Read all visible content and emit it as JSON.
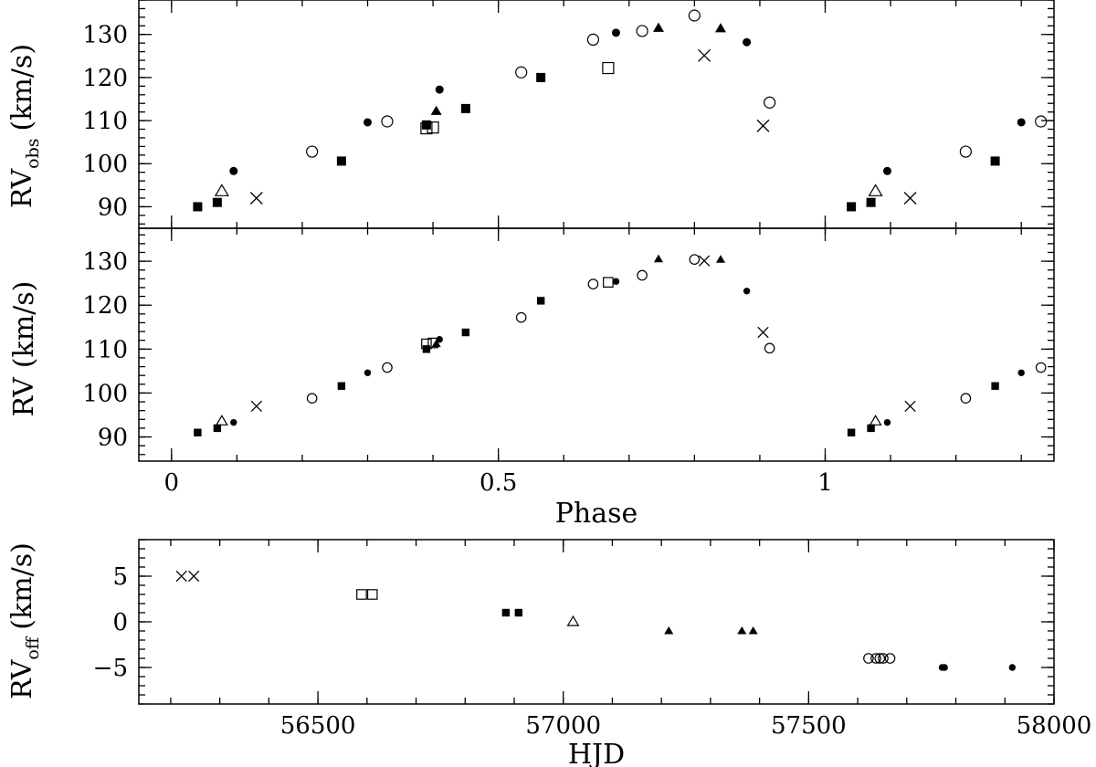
{
  "chart_data": [
    {
      "type": "scatter",
      "id": "rv-obs-panel",
      "ylabel_main": "RV",
      "ylabel_sub": "obs",
      "ylabel_unit": "(km/s)",
      "xlim": [
        -0.05,
        1.35
      ],
      "ylim": [
        85,
        138
      ],
      "yticks": [
        90,
        100,
        110,
        120,
        130
      ],
      "xticks": [
        0,
        0.5,
        1
      ],
      "show_xtick_labels": false,
      "series": [
        {
          "marker": "filled-square",
          "points": [
            [
              0.04,
              90
            ],
            [
              0.07,
              91
            ],
            [
              0.26,
              100.6
            ],
            [
              0.39,
              109
            ],
            [
              0.45,
              112.8
            ],
            [
              0.565,
              120
            ],
            [
              1.04,
              90
            ],
            [
              1.07,
              91
            ],
            [
              1.26,
              100.6
            ]
          ]
        },
        {
          "marker": "filled-circle",
          "points": [
            [
              0.095,
              98.3
            ],
            [
              0.3,
              109.6
            ],
            [
              0.41,
              117.2
            ],
            [
              0.68,
              130.4
            ],
            [
              0.88,
              128.2
            ],
            [
              1.095,
              98.3
            ],
            [
              1.3,
              109.6
            ]
          ]
        },
        {
          "marker": "filled-triangle",
          "points": [
            [
              0.405,
              112.2
            ],
            [
              0.745,
              131.5
            ],
            [
              0.84,
              131.4
            ]
          ]
        },
        {
          "marker": "open-circle",
          "points": [
            [
              0.215,
              102.8
            ],
            [
              0.33,
              109.8
            ],
            [
              0.535,
              121.2
            ],
            [
              0.645,
              128.8
            ],
            [
              0.72,
              130.8
            ],
            [
              0.8,
              134.4
            ],
            [
              0.915,
              114.2
            ],
            [
              1.215,
              102.8
            ],
            [
              1.33,
              109.8
            ]
          ]
        },
        {
          "marker": "open-square",
          "points": [
            [
              0.39,
              108.2
            ],
            [
              0.4,
              108.4
            ],
            [
              0.668,
              122.2
            ]
          ]
        },
        {
          "marker": "open-triangle",
          "points": [
            [
              0.077,
              93.6
            ],
            [
              1.077,
              93.6
            ]
          ]
        },
        {
          "marker": "cross",
          "points": [
            [
              0.13,
              92
            ],
            [
              0.815,
              125.1
            ],
            [
              0.905,
              108.8
            ],
            [
              1.13,
              92
            ]
          ]
        }
      ]
    },
    {
      "type": "scatter",
      "id": "rv-panel",
      "ylabel_main": "RV",
      "ylabel_unit": "(km/s)",
      "xlabel": "Phase",
      "xlim": [
        -0.05,
        1.35
      ],
      "ylim": [
        84.5,
        137.5
      ],
      "yticks": [
        90,
        100,
        110,
        120,
        130
      ],
      "xticks": [
        0,
        0.5,
        1
      ],
      "xtick_labels": [
        "0",
        "0.5",
        "1"
      ],
      "series": [
        {
          "marker": "filled-square",
          "points": [
            [
              0.04,
              91
            ],
            [
              0.07,
              92
            ],
            [
              0.26,
              101.6
            ],
            [
              0.39,
              110
            ],
            [
              0.45,
              113.8
            ],
            [
              0.565,
              121
            ],
            [
              1.04,
              91
            ],
            [
              1.07,
              92
            ],
            [
              1.26,
              101.6
            ]
          ]
        },
        {
          "marker": "filled-circle",
          "points": [
            [
              0.095,
              93.3
            ],
            [
              0.3,
              104.6
            ],
            [
              0.41,
              112.2
            ],
            [
              0.68,
              125.4
            ],
            [
              0.88,
              123.2
            ],
            [
              1.095,
              93.3
            ],
            [
              1.3,
              104.6
            ]
          ]
        },
        {
          "marker": "filled-triangle",
          "points": [
            [
              0.405,
              111.2
            ],
            [
              0.745,
              130.5
            ],
            [
              0.84,
              130.4
            ]
          ]
        },
        {
          "marker": "open-circle",
          "points": [
            [
              0.215,
              98.8
            ],
            [
              0.33,
              105.8
            ],
            [
              0.535,
              117.2
            ],
            [
              0.645,
              124.8
            ],
            [
              0.72,
              126.8
            ],
            [
              0.8,
              130.4
            ],
            [
              0.915,
              110.2
            ],
            [
              1.215,
              98.8
            ],
            [
              1.33,
              105.8
            ]
          ]
        },
        {
          "marker": "open-square",
          "points": [
            [
              0.39,
              111.2
            ],
            [
              0.4,
              111.4
            ],
            [
              0.668,
              125.2
            ]
          ]
        },
        {
          "marker": "open-triangle",
          "points": [
            [
              0.077,
              93.6
            ],
            [
              1.077,
              93.6
            ]
          ]
        },
        {
          "marker": "cross",
          "points": [
            [
              0.13,
              97
            ],
            [
              0.815,
              130.1
            ],
            [
              0.905,
              113.8
            ],
            [
              1.13,
              97
            ]
          ]
        }
      ]
    },
    {
      "type": "scatter",
      "id": "rv-off-panel",
      "ylabel_main": "RV",
      "ylabel_sub": "off",
      "ylabel_unit": "(km/s)",
      "xlabel": "HJD",
      "xlim": [
        56135,
        58000
      ],
      "ylim": [
        -9,
        9
      ],
      "yticks": [
        -5,
        0,
        5
      ],
      "ytick_labels": [
        "−5",
        "0",
        "5"
      ],
      "xticks": [
        56500,
        57000,
        57500,
        58000
      ],
      "xtick_labels": [
        "56500",
        "57000",
        "57500",
        "58000"
      ],
      "series": [
        {
          "marker": "cross",
          "points": [
            [
              56222,
              5
            ],
            [
              56247,
              5
            ]
          ]
        },
        {
          "marker": "open-square",
          "points": [
            [
              56589,
              3
            ],
            [
              56611,
              3
            ]
          ]
        },
        {
          "marker": "filled-square",
          "points": [
            [
              56883,
              1
            ],
            [
              56909,
              1
            ]
          ]
        },
        {
          "marker": "open-triangle",
          "points": [
            [
              57020,
              0
            ]
          ]
        },
        {
          "marker": "filled-triangle",
          "points": [
            [
              57215,
              -1
            ],
            [
              57364,
              -1
            ],
            [
              57387,
              -1
            ]
          ]
        },
        {
          "marker": "open-circle",
          "points": [
            [
              57622,
              -4
            ],
            [
              57637,
              -4
            ],
            [
              57645,
              -4
            ],
            [
              57652,
              -4
            ],
            [
              57666,
              -4
            ]
          ]
        },
        {
          "marker": "filled-circle",
          "points": [
            [
              57772,
              -5
            ],
            [
              57777,
              -5
            ],
            [
              57915,
              -5
            ]
          ]
        }
      ]
    }
  ]
}
